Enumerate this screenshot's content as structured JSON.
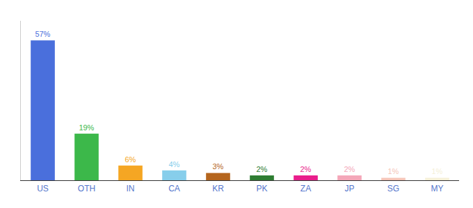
{
  "chart_data": {
    "type": "bar",
    "categories": [
      "US",
      "OTH",
      "IN",
      "CA",
      "KR",
      "PK",
      "ZA",
      "JP",
      "SG",
      "MY"
    ],
    "values": [
      57,
      19,
      6,
      4,
      3,
      2,
      2,
      2,
      1,
      1
    ],
    "value_labels": [
      "57%",
      "19%",
      "6%",
      "4%",
      "3%",
      "2%",
      "2%",
      "2%",
      "1%",
      "1%"
    ],
    "colors": [
      "#4a6fdc",
      "#3cb84a",
      "#f5a623",
      "#87ceeb",
      "#b5651d",
      "#2e7d32",
      "#e91e8c",
      "#f4a7b9",
      "#f5c5b8",
      "#f5f0d8"
    ],
    "ylim": [
      0,
      65
    ],
    "data_labels": true,
    "tick_labels": "x",
    "grid": false
  }
}
